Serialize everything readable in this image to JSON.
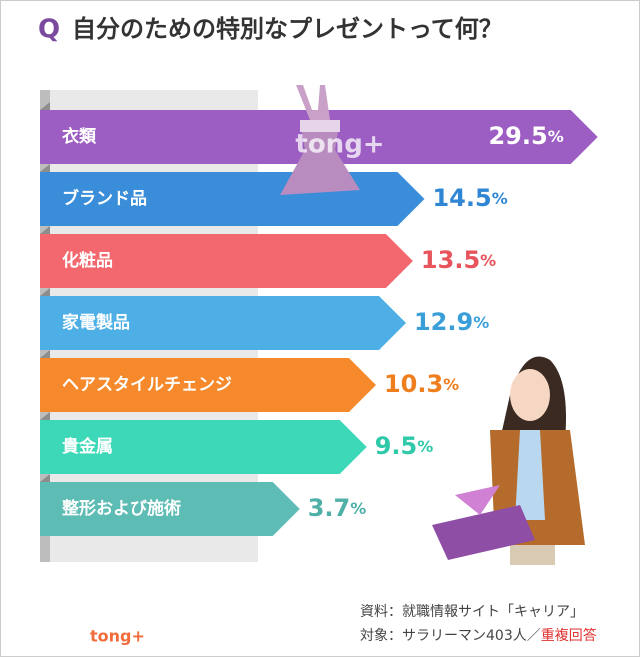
{
  "chart_data": {
    "type": "bar",
    "title_marker": "Q",
    "title": "自分のための特別なプレゼントって何？",
    "categories": [
      "衣類",
      "ブランド品",
      "化粧品",
      "家電製品",
      "ヘアスタイルチェンジ",
      "貴金属",
      "整形および施術"
    ],
    "values": [
      29.5,
      14.5,
      13.5,
      12.9,
      10.3,
      9.5,
      3.7
    ],
    "value_labels": [
      "29.5%",
      "14.5%",
      "13.5%",
      "12.9%",
      "10.3%",
      "9.5%",
      "3.7%"
    ],
    "colors": [
      "#9c5ec2",
      "#3a8ed9",
      "#f2686e",
      "#4eaee6",
      "#f5892b",
      "#3dd8b7",
      "#5dbcb4"
    ],
    "label_colors": [
      "#ffffff",
      "#2f86d4",
      "#e8545b",
      "#3a9fd9",
      "#ef7f1e",
      "#2ec9a8",
      "#4fb0a8"
    ],
    "source": "資料：就職情報サイト「キャリア」",
    "note": "対象：サラリーマン403人／",
    "note_highlight": "重複回答",
    "logo": "tong+"
  }
}
